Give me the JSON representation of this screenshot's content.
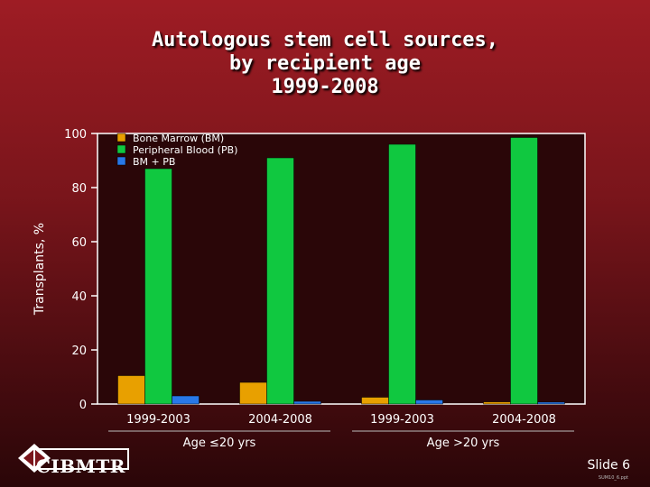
{
  "title_lines": [
    "Autologous stem cell sources,",
    "by recipient age",
    "1999-2008"
  ],
  "colors": {
    "bm": "#e8a000",
    "pb": "#10c840",
    "bmpb": "#2878e8",
    "axis": "#ffffff",
    "plot_bg": "#2a0608"
  },
  "chart_data": {
    "type": "bar",
    "ylabel": "Transplants, %",
    "ylim": [
      0,
      100
    ],
    "yticks": [
      0,
      20,
      40,
      60,
      80,
      100
    ],
    "categories": [
      "1999-2003",
      "2004-2008",
      "1999-2003",
      "2004-2008"
    ],
    "groups": [
      {
        "label": "Age ≤20 yrs",
        "categories": [
          0,
          1
        ]
      },
      {
        "label": "Age >20 yrs",
        "categories": [
          2,
          3
        ]
      }
    ],
    "series": [
      {
        "name": "Bone Marrow (BM)",
        "color_key": "bm",
        "values": [
          10.5,
          8,
          2.5,
          0.8
        ]
      },
      {
        "name": "Peripheral Blood (PB)",
        "color_key": "pb",
        "values": [
          87,
          91,
          96,
          98.5
        ]
      },
      {
        "name": "BM + PB",
        "color_key": "bmpb",
        "values": [
          3,
          1,
          1.5,
          0.7
        ]
      }
    ],
    "legend_position": "top-left"
  },
  "logo_text": "CIBMTR",
  "slide_number": "Slide 6",
  "slide_code": "SUM10_6.ppt"
}
